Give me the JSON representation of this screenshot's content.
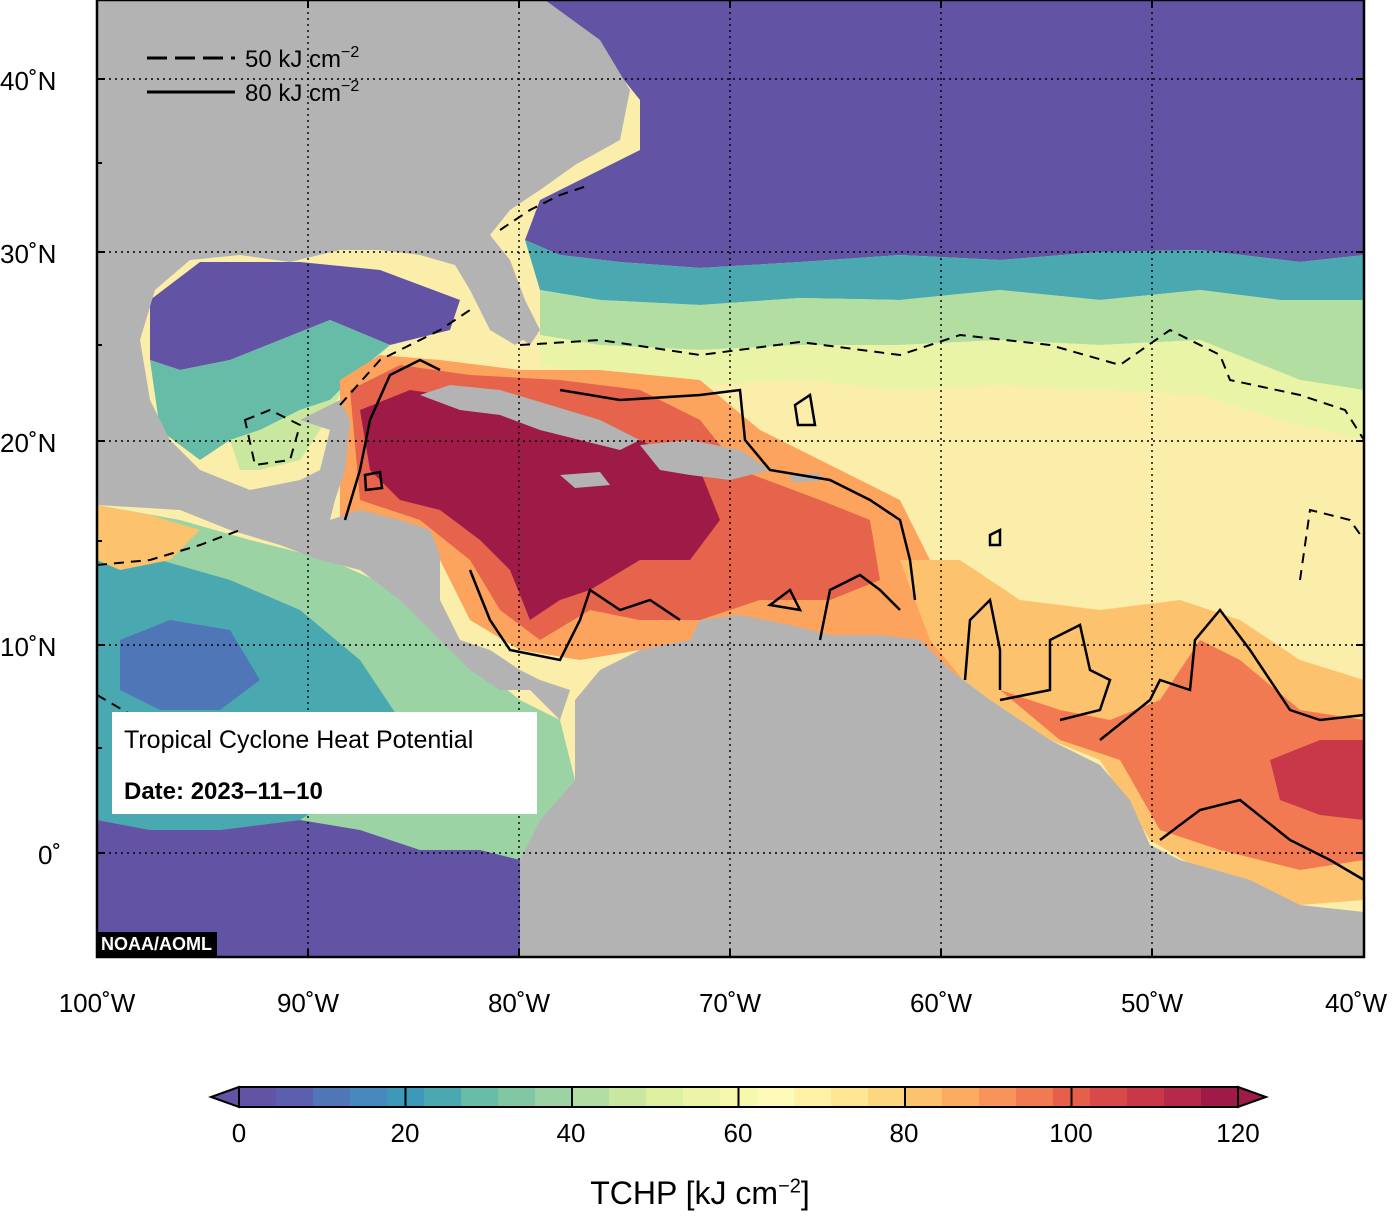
{
  "map": {
    "title": "Tropical Cyclone Heat Potential",
    "date_label": "Date:",
    "date_value": "2023–11–10",
    "credit": "NOAA/AOML",
    "lon_labels": [
      "100˚W",
      "90˚W",
      "80˚W",
      "70˚W",
      "60˚W",
      "50˚W",
      "40˚W"
    ],
    "lat_labels": [
      "40˚N",
      "30˚N",
      "20˚N",
      "10˚N",
      "0˚"
    ],
    "contour_legend": [
      {
        "style": "dashed",
        "value": "50 kJ cm",
        "exp": "−2"
      },
      {
        "style": "solid",
        "value": "80 kJ cm",
        "exp": "−2"
      }
    ],
    "land_color": "#b3b3b3"
  },
  "colorbar": {
    "tick_labels": [
      "0",
      "20",
      "40",
      "60",
      "80",
      "100",
      "120"
    ],
    "title_main": "TCHP [kJ cm",
    "title_exp": "−2",
    "title_end": "]",
    "colors": [
      "#6353a4",
      "#5c5fad",
      "#4f77b7",
      "#4589bd",
      "#3e98b9",
      "#4aa9b0",
      "#66bca7",
      "#81c7a4",
      "#9cd3a4",
      "#b3dea1",
      "#c9e79e",
      "#dcf0a0",
      "#ecf5a5",
      "#f6f9ac",
      "#fefbb9",
      "#fff2a6",
      "#fee693",
      "#fdd680",
      "#fdc26d",
      "#fcac61",
      "#f8935a",
      "#f27a52",
      "#e65f4b",
      "#d84a4a",
      "#c93849",
      "#b52a4a",
      "#9e1b47"
    ]
  }
}
